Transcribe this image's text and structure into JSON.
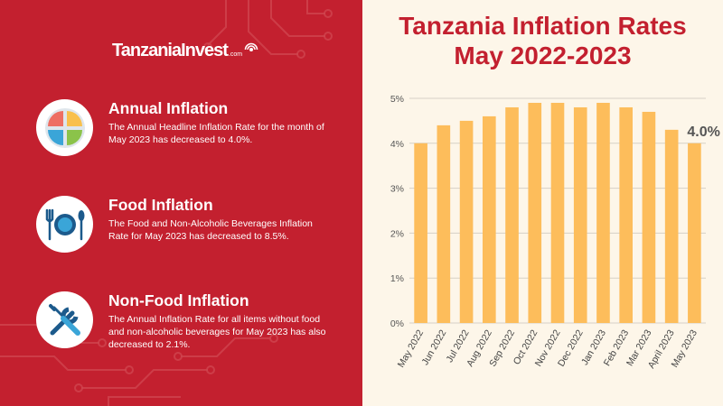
{
  "brand": {
    "name": "TanzaniaInvest",
    "suffix": ".com"
  },
  "features": [
    {
      "icon": "pie-chart-icon",
      "title": "Annual Inflation",
      "description": "The Annual Headline Inflation Rate for the month of May 2023 has decreased to 4.0%."
    },
    {
      "icon": "plate-fork-spoon-icon",
      "title": "Food Inflation",
      "description": "The Food and Non-Alcoholic Beverages Inflation Rate for May 2023 has decreased to 8.5%."
    },
    {
      "icon": "wrench-screwdriver-icon",
      "title": "Non-Food Inflation",
      "description": "The Annual Inflation Rate for all items without food and non-alcoholic beverages for May 2023 has also decreased to 2.1%."
    }
  ],
  "colors": {
    "brand_red": "#c3202f",
    "bar": "#fdbd5b",
    "background": "#fdf6e9",
    "grid": "#d6d0c6"
  },
  "chart_data": {
    "type": "bar",
    "title_line1": "Tanzania Inflation Rates",
    "title_line2": "May 2022-2023",
    "categories": [
      "May 2022",
      "Jun 2022",
      "Jul 2022",
      "Aug 2022",
      "Sep 2022",
      "Oct 2022",
      "Nov 2022",
      "Dec 2022",
      "Jan 2023",
      "Feb 2023",
      "Mar 2023",
      "April 2023",
      "May 2023"
    ],
    "values": [
      4.0,
      4.4,
      4.5,
      4.6,
      4.8,
      4.9,
      4.9,
      4.8,
      4.9,
      4.8,
      4.7,
      4.3,
      4.0
    ],
    "ylim": [
      0,
      5
    ],
    "y_ticks": [
      0,
      1,
      2,
      3,
      4,
      5
    ],
    "y_tick_labels": [
      "0%",
      "1%",
      "2%",
      "3%",
      "4%",
      "5%"
    ],
    "grid": true,
    "annotation": {
      "index": 12,
      "text": "4.0%"
    },
    "xlabel": "",
    "ylabel": ""
  }
}
